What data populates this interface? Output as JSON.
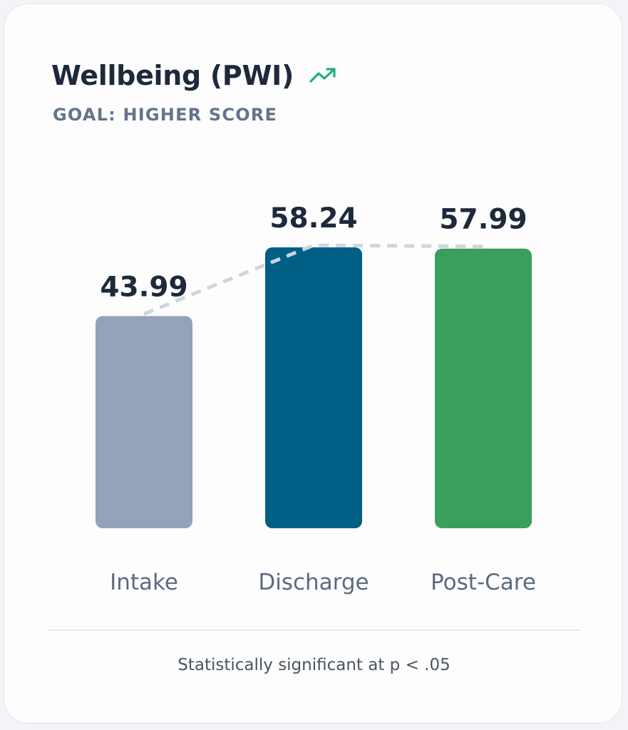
{
  "title": "Wellbeing (PWI)",
  "subtitle": "GOAL: HIGHER SCORE",
  "trend_icon": "trending-up-icon",
  "footnote": "Statistically significant at p < .05",
  "colors": {
    "trend": "#22b07d",
    "connector": "#cfd5de"
  },
  "chart_data": {
    "type": "bar",
    "title": "Wellbeing (PWI)",
    "subtitle": "GOAL: HIGHER SCORE",
    "xlabel": "",
    "ylabel": "",
    "categories": [
      "Intake",
      "Discharge",
      "Post-Care"
    ],
    "values": [
      43.99,
      58.24,
      57.99
    ],
    "value_labels": [
      "43.99",
      "58.24",
      "57.99"
    ],
    "colors": [
      "#94a3b8",
      "#005f85",
      "#3a9f5d"
    ],
    "ylim": [
      0,
      58.24
    ],
    "grid": false,
    "legend": "none",
    "connector": "dashed line joining bar tops"
  }
}
